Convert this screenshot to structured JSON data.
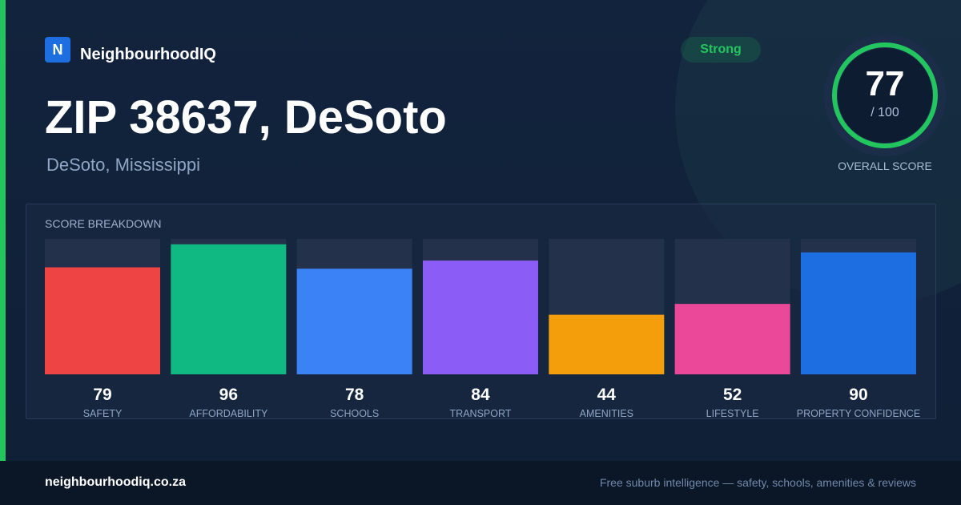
{
  "brand": {
    "logo_letter": "N",
    "name": "NeighbourhoodIQ"
  },
  "location": {
    "title": "ZIP 38637, DeSoto",
    "subtitle": "DeSoto, Mississippi"
  },
  "rating": {
    "badge": "Strong"
  },
  "overall_score": {
    "value": "77",
    "max_label": "/ 100",
    "caption": "OVERALL SCORE",
    "fraction": 0.77
  },
  "breakdown": {
    "heading": "SCORE BREAKDOWN"
  },
  "footer": {
    "domain": "neighbourhoodiq.co.za",
    "tagline": "Free suburb intelligence — safety, schools, amenities & reviews"
  },
  "colors": {
    "accent": "#22c55e",
    "brand_blue": "#1d6ee0",
    "track": "#23314a"
  },
  "chart_data": {
    "type": "bar",
    "title": "SCORE BREAKDOWN",
    "categories": [
      "SAFETY",
      "AFFORDABILITY",
      "SCHOOLS",
      "TRANSPORT",
      "AMENITIES",
      "LIFESTYLE",
      "PROPERTY CONFIDENCE"
    ],
    "values": [
      79,
      96,
      78,
      84,
      44,
      52,
      90
    ],
    "colors": [
      "#ef4444",
      "#10b981",
      "#3b82f6",
      "#8b5cf6",
      "#f59e0b",
      "#ec4899",
      "#1d6ee0"
    ],
    "ylim": [
      0,
      100
    ],
    "grid": false,
    "legend": "none"
  }
}
